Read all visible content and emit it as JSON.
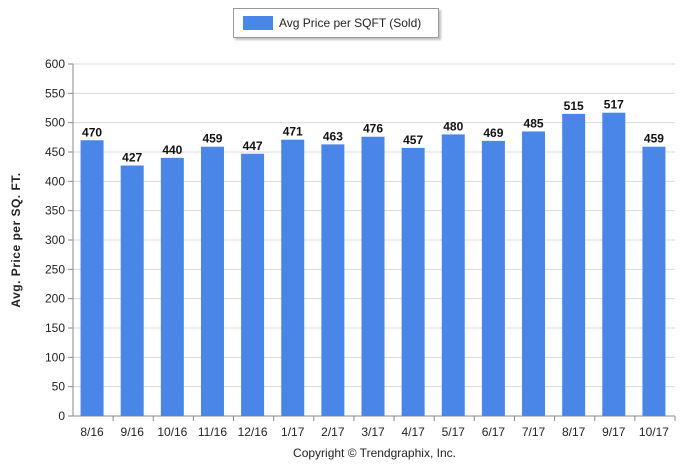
{
  "chart_data": {
    "type": "bar",
    "categories": [
      "8/16",
      "9/16",
      "10/16",
      "11/16",
      "12/16",
      "1/17",
      "2/17",
      "3/17",
      "4/17",
      "5/17",
      "6/17",
      "7/17",
      "8/17",
      "9/17",
      "10/17"
    ],
    "series": [
      {
        "name": "Avg Price per SQFT (Sold)",
        "values": [
          470,
          427,
          440,
          459,
          447,
          471,
          463,
          476,
          457,
          480,
          469,
          485,
          515,
          517,
          459
        ]
      }
    ],
    "ylabel": "Avg. Price per SQ. FT.",
    "xlabel": "",
    "ylim": [
      0,
      600
    ],
    "yticks": [
      0,
      50,
      100,
      150,
      200,
      250,
      300,
      350,
      400,
      450,
      500,
      550,
      600
    ],
    "grid": "horizontal",
    "legend": "top-center",
    "data_labels": true
  },
  "colors": {
    "bar": "#4a86e8"
  },
  "footer": "Copyright © Trendgraphix, Inc."
}
